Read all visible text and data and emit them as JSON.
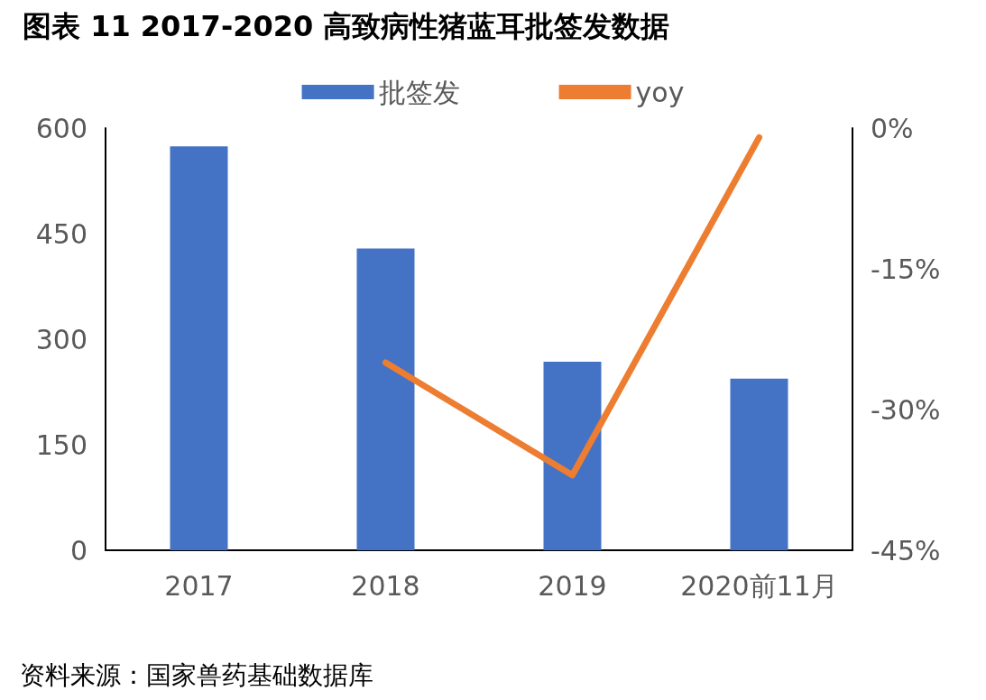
{
  "chart_data": {
    "type": "bar",
    "title": "图表 11 2017-2020 高致病性猪蓝耳批签发数据",
    "categories": [
      "2017",
      "2018",
      "2019",
      "2020前11月"
    ],
    "series": [
      {
        "name": "批签发",
        "color": "#4472c4",
        "values": [
          574,
          429,
          268,
          244
        ]
      },
      {
        "name": "yoy",
        "type": "line",
        "axis": "y2",
        "color": "#ed7d31",
        "values": [
          null,
          -25,
          -37,
          -1
        ]
      }
    ],
    "ylim": [
      0,
      600
    ],
    "yticks": [
      0,
      150,
      300,
      450,
      600
    ],
    "y2lim": [
      -45,
      0
    ],
    "y2ticks": [
      {
        "value": -45,
        "label": "-45%"
      },
      {
        "value": -30,
        "label": "-30%"
      },
      {
        "value": -15,
        "label": "-15%"
      },
      {
        "value": 0,
        "label": "0%"
      }
    ],
    "grid": false,
    "legend": "top",
    "marker": "none",
    "line_style": "solid",
    "annotations": [
      "资料来源：国家兽药基础数据库"
    ]
  }
}
